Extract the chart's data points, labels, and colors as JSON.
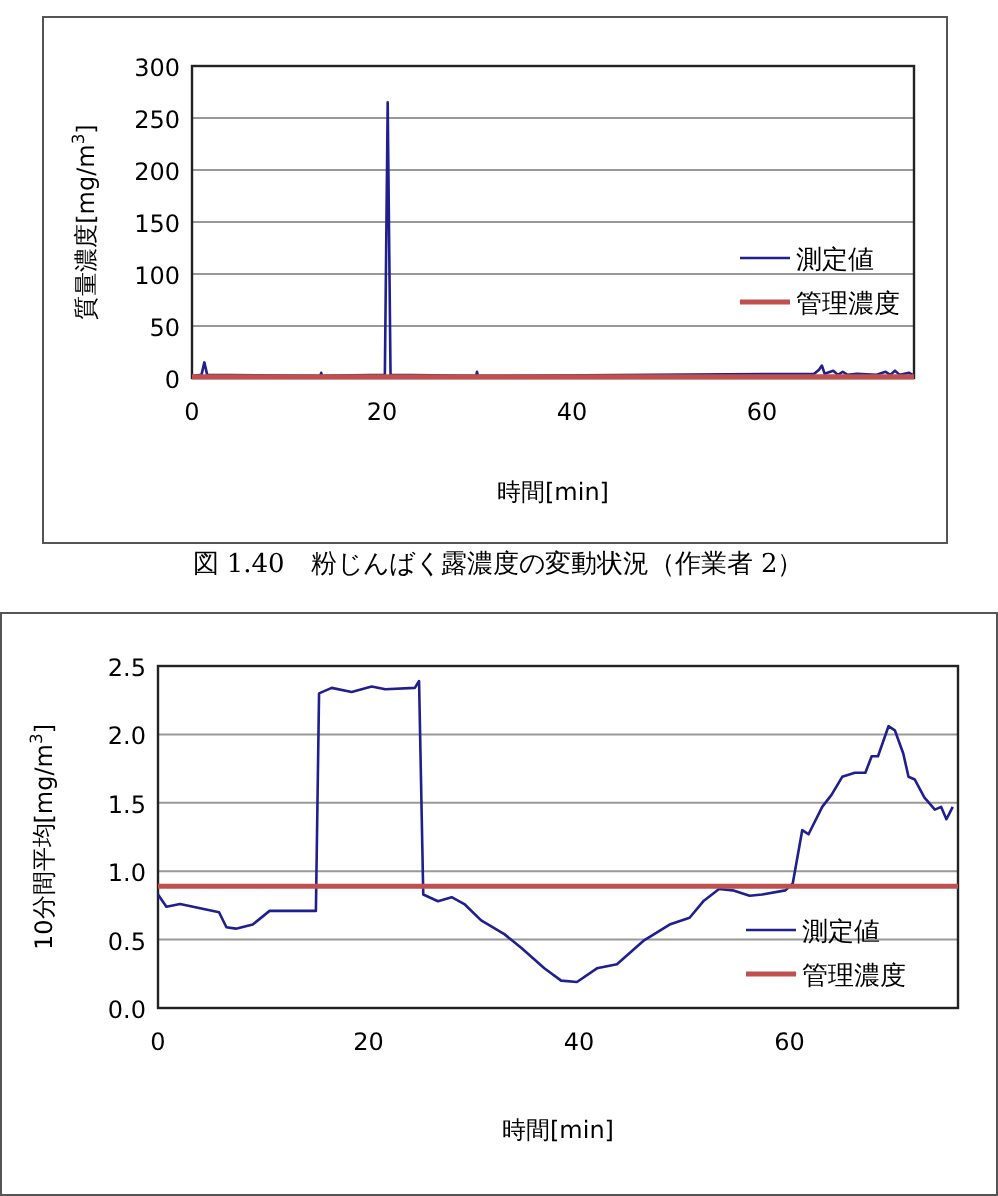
{
  "chart_data": [
    {
      "type": "line",
      "xlabel": "時間[min]",
      "ylabel": "質量濃度[mg/m$^{3}$]",
      "xlim": [
        0,
        76
      ],
      "ylim": [
        0,
        300
      ],
      "xticks": [
        0,
        20,
        40,
        60
      ],
      "yticks": [
        0,
        50,
        100,
        150,
        200,
        250,
        300
      ],
      "grid": "y",
      "legend": "right",
      "annotations": [
        "図 1.40　粉じんばく露濃度の変動状況（作業者 2）"
      ],
      "series": [
        {
          "name": "測定値",
          "color": "#1f1f8f",
          "x": [
            0,
            1.0,
            1.3,
            1.6,
            13.5,
            13.6,
            13.7,
            20.3,
            20.6,
            20.9,
            29.9,
            30,
            30.1,
            65.5,
            66,
            66.3,
            66.6,
            67.5,
            68,
            68.5,
            69,
            70,
            72,
            73,
            73.5,
            74,
            74.5,
            75.5,
            76
          ],
          "values": [
            2,
            3,
            15,
            3,
            2,
            5,
            2,
            3,
            265,
            3,
            2,
            6,
            2,
            4,
            8,
            12,
            4,
            7,
            3,
            6,
            3,
            4,
            3,
            6,
            3,
            7,
            3,
            5,
            2
          ]
        },
        {
          "name": "管理濃度",
          "color": "#c0504d",
          "x": [
            0,
            76
          ],
          "values": [
            1,
            1
          ]
        }
      ]
    },
    {
      "type": "line",
      "xlabel": "時間[min]",
      "ylabel": "10分間平均[mg/m$^{3}$]",
      "xlim": [
        0,
        76
      ],
      "ylim": [
        0,
        2.5
      ],
      "xticks": [
        0,
        20,
        40,
        60
      ],
      "yticks": [
        {
          "value": 0,
          "label": "0.0"
        },
        0.5,
        {
          "value": 1,
          "label": "1.0"
        },
        1.5,
        {
          "value": 2,
          "label": "2.0"
        },
        2.5
      ],
      "grid": "y",
      "legend": "bottom right",
      "series": [
        {
          "name": "測定値",
          "color": "#1f1f8f",
          "x": [
            0,
            0.8,
            2.1,
            5.8,
            6.5,
            7.4,
            9.0,
            10.6,
            15.0,
            15.3,
            16.5,
            18.4,
            20.3,
            21.6,
            24.4,
            24.8,
            25.2,
            26.6,
            27.9,
            29.1,
            30.7,
            32.9,
            34.5,
            36.7,
            38.3,
            39.8,
            41.7,
            43.6,
            46.1,
            48.6,
            50.5,
            51.8,
            53.3,
            54.6,
            56.2,
            57.4,
            59.6,
            60.3,
            61.2,
            61.8,
            63.1,
            64.0,
            65.0,
            66.2,
            67.2,
            67.8,
            68.4,
            69.4,
            70.0,
            70.8,
            71.3,
            71.9,
            72.8,
            73.8,
            74.4,
            74.9,
            75.5
          ],
          "values": [
            0.83,
            0.74,
            0.76,
            0.7,
            0.59,
            0.58,
            0.61,
            0.71,
            0.71,
            2.3,
            2.34,
            2.31,
            2.35,
            2.33,
            2.34,
            2.39,
            0.83,
            0.78,
            0.81,
            0.76,
            0.64,
            0.54,
            0.44,
            0.29,
            0.2,
            0.19,
            0.29,
            0.32,
            0.49,
            0.61,
            0.66,
            0.78,
            0.87,
            0.86,
            0.82,
            0.83,
            0.86,
            0.91,
            1.3,
            1.27,
            1.47,
            1.56,
            1.69,
            1.72,
            1.72,
            1.84,
            1.84,
            2.06,
            2.03,
            1.86,
            1.69,
            1.67,
            1.54,
            1.45,
            1.47,
            1.38,
            1.47
          ]
        },
        {
          "name": "管理濃度",
          "color": "#c0504d",
          "x": [
            0,
            76
          ],
          "values": [
            0.89,
            0.89
          ]
        }
      ]
    }
  ]
}
